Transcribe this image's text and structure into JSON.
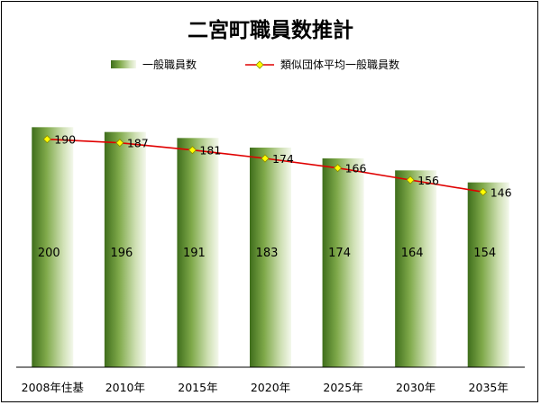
{
  "chart_data": {
    "type": "bar",
    "title": "二宮町職員数推計",
    "categories": [
      "2008年住基",
      "2010年",
      "2015年",
      "2020年",
      "2025年",
      "2030年",
      "2035年"
    ],
    "series": [
      {
        "name": "一般職員数",
        "type": "bar",
        "values": [
          200,
          196,
          191,
          183,
          174,
          164,
          154
        ],
        "color": "#5b8c2a"
      },
      {
        "name": "類似団体平均一般職員数",
        "type": "line",
        "values": [
          190,
          187,
          181,
          174,
          166,
          156,
          146
        ],
        "color": "#e00000",
        "marker_color": "#ffff00"
      }
    ],
    "ylim": [
      0,
      210
    ],
    "grid": false,
    "legend": "top"
  }
}
